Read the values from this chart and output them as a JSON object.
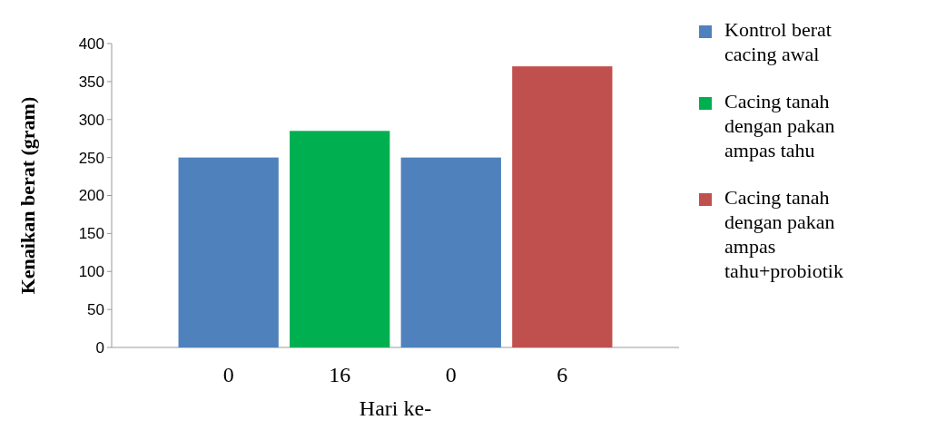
{
  "chart_data": {
    "type": "bar",
    "xlabel": "Hari ke-",
    "ylabel": "Kenaikan berat (gram)",
    "categories": [
      "0",
      "16",
      "0",
      "6"
    ],
    "series": [
      {
        "name": "Kontrol berat cacing  awal",
        "color": "#4f81bd",
        "values": [
          250,
          null,
          250,
          null
        ]
      },
      {
        "name": "Cacing tanah dengan pakan ampas tahu",
        "color": "#00b050",
        "values": [
          null,
          285,
          null,
          null
        ]
      },
      {
        "name": "Cacing tanah dengan pakan ampas tahu+probiotik",
        "color": "#c0504d",
        "values": [
          null,
          null,
          null,
          370
        ]
      }
    ],
    "ylim": [
      0,
      400
    ],
    "yticks": [
      0,
      50,
      100,
      150,
      200,
      250,
      300,
      350,
      400
    ],
    "grid": false,
    "legend": "right"
  }
}
